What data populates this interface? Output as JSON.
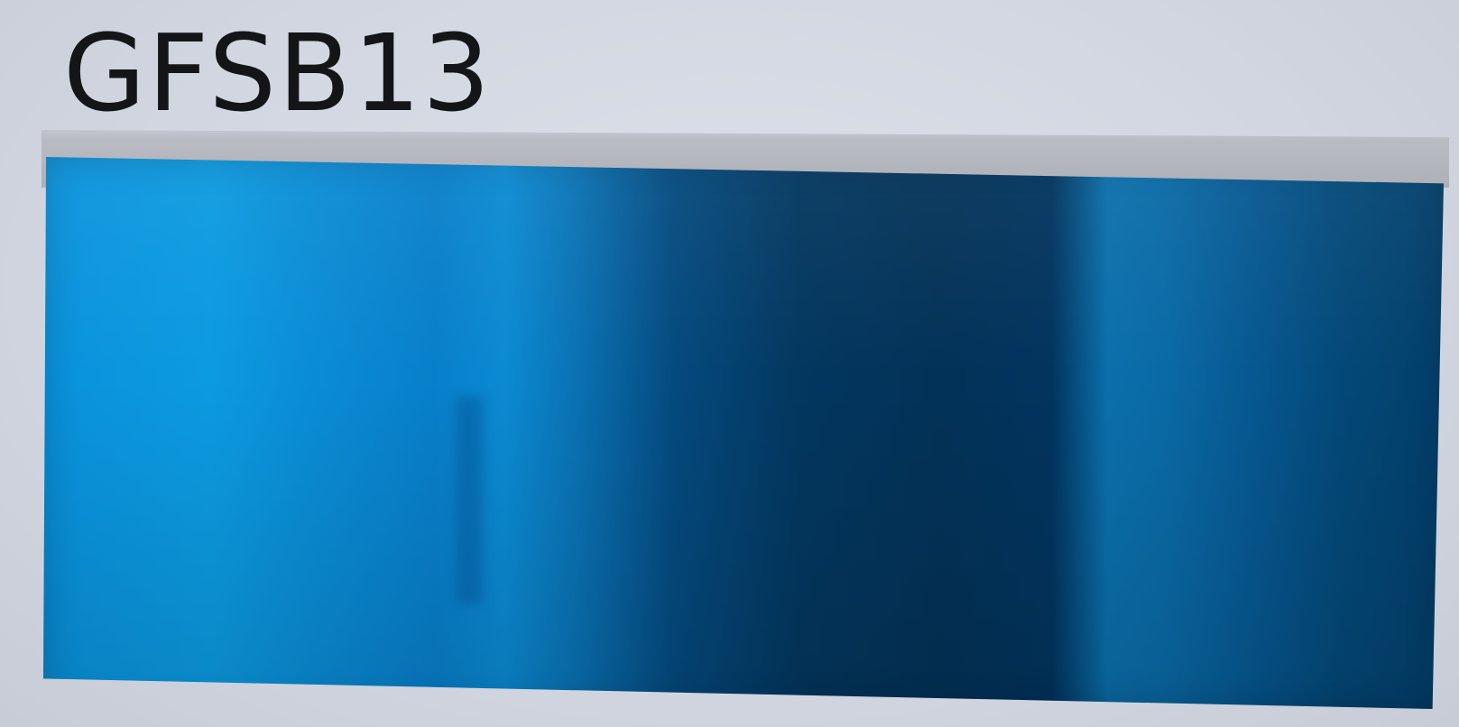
{
  "label": {
    "text": "GFSB13",
    "color": "#141518"
  },
  "swatch": {
    "colors": {
      "light": "#0a92dc",
      "mid": "#087fca",
      "dark": "#033258",
      "medium_dark": "#0a6aa6"
    }
  }
}
